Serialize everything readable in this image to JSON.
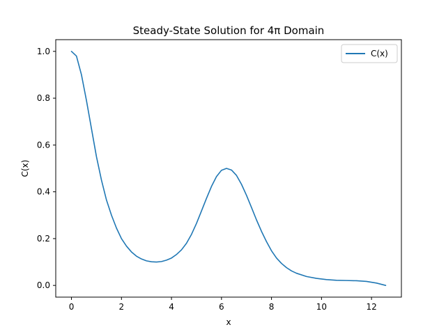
{
  "chart_data": {
    "type": "line",
    "title": "Steady-State Solution for 4π Domain",
    "xlabel": "x",
    "ylabel": "C(x)",
    "xlim": [
      -0.628,
      13.195
    ],
    "ylim": [
      -0.05,
      1.05
    ],
    "xticks": [
      0,
      2,
      4,
      6,
      8,
      10,
      12
    ],
    "yticks": [
      0.0,
      0.2,
      0.4,
      0.6,
      0.8,
      1.0
    ],
    "xtick_labels": [
      "0",
      "2",
      "4",
      "6",
      "8",
      "10",
      "12"
    ],
    "ytick_labels": [
      "0.0",
      "0.2",
      "0.4",
      "0.6",
      "0.8",
      "1.0"
    ],
    "grid": false,
    "legend_position": "top-right",
    "series": [
      {
        "name": "C(x)",
        "color": "#1f77b4",
        "x": [
          0,
          0.2,
          0.4,
          0.6,
          0.8,
          1.0,
          1.2,
          1.4,
          1.6,
          1.8,
          2.0,
          2.2,
          2.4,
          2.6,
          2.8,
          3.0,
          3.2,
          3.4,
          3.6,
          3.8,
          4.0,
          4.2,
          4.4,
          4.6,
          4.8,
          5.0,
          5.2,
          5.4,
          5.6,
          5.8,
          6.0,
          6.2,
          6.4,
          6.6,
          6.8,
          7.0,
          7.2,
          7.4,
          7.6,
          7.8,
          8.0,
          8.2,
          8.4,
          8.6,
          8.8,
          9.0,
          9.4,
          9.8,
          10.2,
          10.6,
          11.0,
          11.4,
          11.8,
          12.2,
          12.566
        ],
        "y": [
          1.0,
          0.98,
          0.9,
          0.79,
          0.67,
          0.55,
          0.45,
          0.365,
          0.3,
          0.245,
          0.2,
          0.168,
          0.143,
          0.125,
          0.113,
          0.105,
          0.101,
          0.1,
          0.102,
          0.108,
          0.117,
          0.132,
          0.152,
          0.18,
          0.218,
          0.265,
          0.318,
          0.372,
          0.423,
          0.465,
          0.492,
          0.5,
          0.493,
          0.47,
          0.432,
          0.385,
          0.333,
          0.28,
          0.231,
          0.187,
          0.148,
          0.117,
          0.094,
          0.076,
          0.062,
          0.052,
          0.038,
          0.03,
          0.025,
          0.022,
          0.021,
          0.02,
          0.017,
          0.01,
          0.0
        ]
      }
    ]
  }
}
